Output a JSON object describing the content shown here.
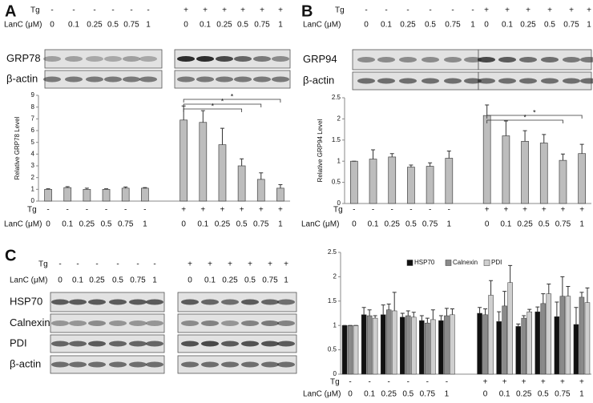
{
  "panels": [
    {
      "label": "A",
      "tg_label": "Tg",
      "tg": [
        "-",
        "-",
        "-",
        "-",
        "-",
        "-",
        "+",
        "+",
        "+",
        "+",
        "+",
        "+"
      ],
      "lanc_label": "LanC (μM)",
      "lanc": [
        "0",
        "0.1",
        "0.25",
        "0.5",
        "0.75",
        "1",
        "0",
        "0.1",
        "0.25",
        "0.5",
        "0.75",
        "1"
      ],
      "blots": [
        "GRP78",
        "β-actin"
      ]
    },
    {
      "label": "B",
      "tg_label": "Tg",
      "tg": [
        "-",
        "-",
        "-",
        "-",
        "-",
        "-",
        "+",
        "+",
        "+",
        "+",
        "+",
        "+"
      ],
      "lanc_label": "LanC (μM)",
      "lanc": [
        "0",
        "0.1",
        "0.25",
        "0.5",
        "0.75",
        "1",
        "0",
        "0.1",
        "0.25",
        "0.5",
        "0.75",
        "1"
      ],
      "blots": [
        "GRP94",
        "β-actin"
      ]
    },
    {
      "label": "C",
      "tg_label": "Tg",
      "tg": [
        "-",
        "-",
        "-",
        "-",
        "-",
        "-",
        "+",
        "+",
        "+",
        "+",
        "+",
        "+"
      ],
      "lanc_label": "LanC (μM)",
      "lanc": [
        "0",
        "0.1",
        "0.25",
        "0.5",
        "0.75",
        "1",
        "0",
        "0.1",
        "0.25",
        "0.5",
        "0.75",
        "1"
      ],
      "blots": [
        "HSP70",
        "Calnexin",
        "PDI",
        "β-actin"
      ]
    }
  ],
  "chart_data": [
    {
      "type": "bar",
      "y_label": "Relative GRP78 Level",
      "color": "#bdbdbd",
      "tg_label": "Tg",
      "tg": [
        "-",
        "-",
        "-",
        "-",
        "-",
        "-",
        "+",
        "+",
        "+",
        "+",
        "+",
        "+"
      ],
      "categories_label": "LanC (μM)",
      "categories": [
        "0",
        "0.1",
        "0.25",
        "0.5",
        "0.75",
        "1",
        "0",
        "0.1",
        "0.25",
        "0.5",
        "0.75",
        "1"
      ],
      "values": [
        1,
        1.15,
        1.0,
        1.0,
        1.1,
        1.1,
        6.9,
        6.7,
        4.8,
        3.0,
        1.85,
        1.1
      ],
      "errors": [
        0.05,
        0.08,
        0.1,
        0.05,
        0.1,
        0.05,
        1.2,
        1.0,
        1.4,
        0.6,
        0.55,
        0.3
      ],
      "ylim": [
        0,
        9
      ],
      "yticks": [
        0,
        1,
        2,
        3,
        4,
        5,
        6,
        7,
        8,
        9
      ],
      "annotations": [
        "*",
        "*",
        "*"
      ]
    },
    {
      "type": "bar",
      "y_label": "Relative GRP94 Level",
      "color": "#bdbdbd",
      "tg_label": "Tg",
      "tg": [
        "-",
        "-",
        "-",
        "-",
        "-",
        "-",
        "+",
        "+",
        "+",
        "+",
        "+",
        "+"
      ],
      "categories_label": "LanC (μM)",
      "categories": [
        "0",
        "0.1",
        "0.25",
        "0.5",
        "0.75",
        "1",
        "0",
        "0.1",
        "0.25",
        "0.5",
        "0.75",
        "1"
      ],
      "values": [
        1.0,
        1.05,
        1.1,
        0.86,
        0.88,
        1.07,
        2.08,
        1.6,
        1.47,
        1.43,
        1.02,
        1.18
      ],
      "errors": [
        0,
        0.22,
        0.08,
        0.05,
        0.08,
        0.17,
        0.25,
        0.35,
        0.25,
        0.2,
        0.15,
        0.22
      ],
      "ylim": [
        0,
        2.5
      ],
      "yticks": [
        0,
        0.5,
        1,
        1.5,
        2,
        2.5
      ],
      "annotations": [
        "*",
        "*"
      ]
    },
    {
      "type": "grouped_bar",
      "tg_label": "Tg",
      "tg": [
        "-",
        "-",
        "-",
        "-",
        "-",
        "-",
        "+",
        "+",
        "+",
        "+",
        "+",
        "+"
      ],
      "categories_label": "LanC (μM)",
      "categories": [
        "0",
        "0.1",
        "0.25",
        "0.5",
        "0.75",
        "1",
        "0",
        "0.1",
        "0.25",
        "0.5",
        "0.75",
        "1"
      ],
      "series": [
        {
          "name": "HSP70",
          "color": "#111111",
          "values": [
            1,
            1.22,
            1.22,
            1.17,
            1.1,
            1.1,
            1.25,
            1.08,
            0.98,
            1.28,
            1.18,
            1.02
          ],
          "errors": [
            0,
            0.15,
            0.2,
            0.08,
            0.1,
            0.1,
            0.12,
            0.2,
            0.05,
            0.1,
            0.3,
            0.35
          ]
        },
        {
          "name": "Calnexin",
          "color": "#8a8a8a",
          "values": [
            1,
            1.2,
            1.32,
            1.2,
            1.05,
            1.2,
            1.22,
            1.4,
            1.15,
            1.45,
            1.6,
            1.58
          ],
          "errors": [
            0,
            0.12,
            0.12,
            0.1,
            0.1,
            0.15,
            0.12,
            0.3,
            0.05,
            0.2,
            0.4,
            0.1
          ]
        },
        {
          "name": "PDI",
          "color": "#cfcfcf",
          "values": [
            1,
            1.15,
            1.3,
            1.17,
            1.12,
            1.22,
            1.62,
            1.88,
            1.28,
            1.65,
            1.6,
            1.47
          ],
          "errors": [
            0,
            0.05,
            0.38,
            0.1,
            0.2,
            0.12,
            0.3,
            0.35,
            0.05,
            0.2,
            0.2,
            0.3
          ]
        }
      ],
      "ylim": [
        0,
        2.5
      ],
      "yticks": [
        0,
        0.5,
        1,
        1.5,
        2,
        2.5
      ]
    }
  ]
}
